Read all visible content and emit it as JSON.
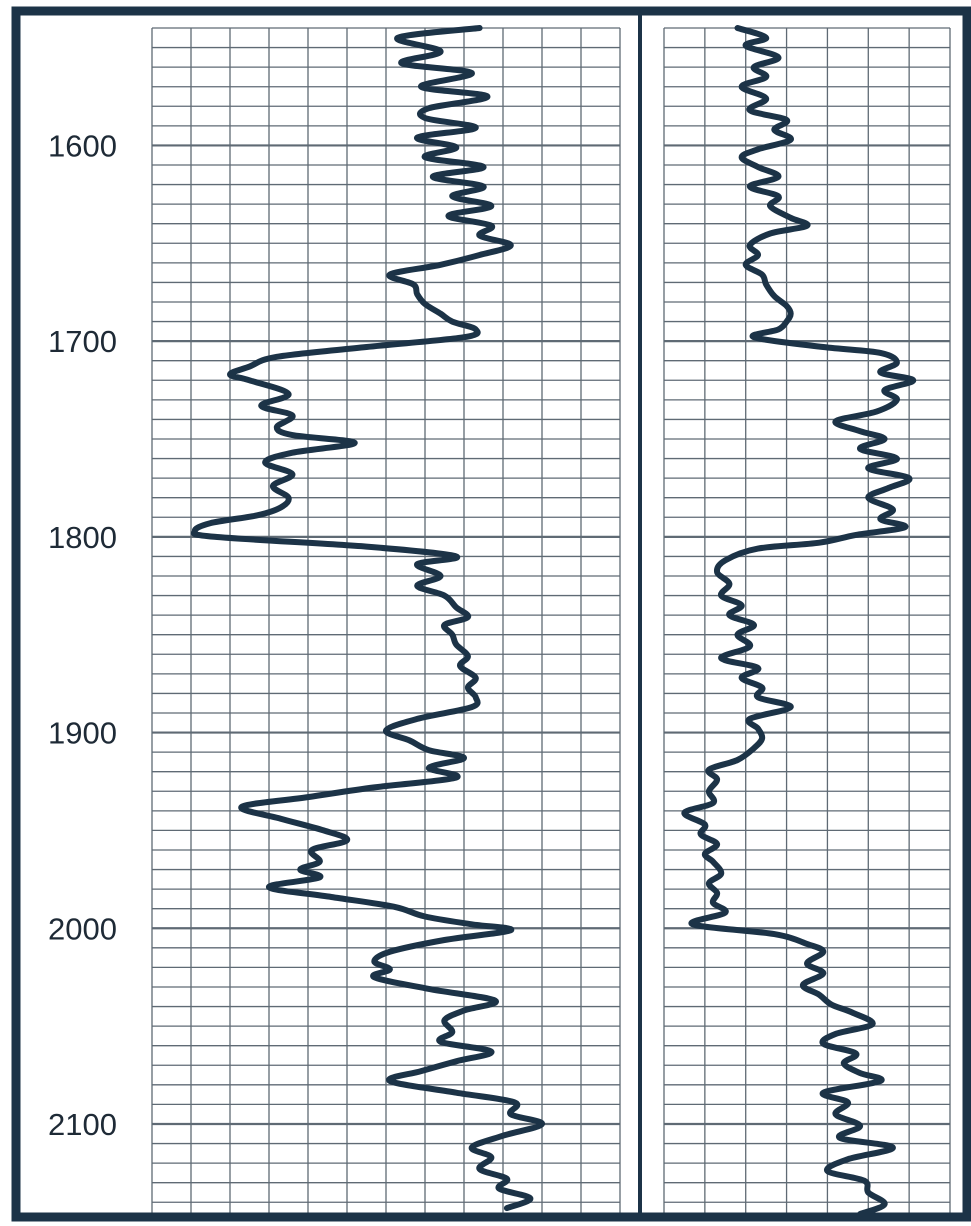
{
  "chart_data": {
    "type": "line",
    "title": "",
    "xlabel": "",
    "ylabel": "",
    "y_axis": {
      "range": [
        1540,
        2146
      ],
      "inverted": true,
      "ticks": [
        1600,
        1700,
        1800,
        1900,
        2000,
        2100
      ],
      "tick_labels": [
        "1600",
        "1700",
        "1800",
        "1900",
        "2000",
        "2100"
      ],
      "grid": true
    },
    "colors": {
      "curve": "#1c3347",
      "grid": "#5f6a74",
      "frame": "#1c3347",
      "text": "#1e2a36"
    },
    "tracks": [
      {
        "name": "",
        "x_range": [
          0,
          12
        ],
        "grid_columns": 12,
        "points": [
          [
            1540,
            8.4
          ],
          [
            1545,
            6.3
          ],
          [
            1552,
            7.4
          ],
          [
            1558,
            6.4
          ],
          [
            1563,
            8.2
          ],
          [
            1570,
            6.9
          ],
          [
            1575,
            8.6
          ],
          [
            1581,
            7.1
          ],
          [
            1586,
            7.0
          ],
          [
            1591,
            8.3
          ],
          [
            1596,
            6.8
          ],
          [
            1601,
            7.8
          ],
          [
            1606,
            7.0
          ],
          [
            1611,
            8.5
          ],
          [
            1616,
            7.2
          ],
          [
            1621,
            8.5
          ],
          [
            1626,
            7.7
          ],
          [
            1631,
            8.7
          ],
          [
            1636,
            7.6
          ],
          [
            1641,
            8.7
          ],
          [
            1646,
            8.4
          ],
          [
            1651,
            9.2
          ],
          [
            1656,
            8.4
          ],
          [
            1661,
            7.4
          ],
          [
            1666,
            6.1
          ],
          [
            1671,
            6.7
          ],
          [
            1676,
            6.8
          ],
          [
            1681,
            7.0
          ],
          [
            1686,
            7.4
          ],
          [
            1690,
            7.7
          ],
          [
            1694,
            8.3
          ],
          [
            1698,
            8.0
          ],
          [
            1703,
            5.5
          ],
          [
            1708,
            3.2
          ],
          [
            1713,
            2.5
          ],
          [
            1717,
            2.0
          ],
          [
            1720,
            2.5
          ],
          [
            1727,
            3.5
          ],
          [
            1733,
            2.8
          ],
          [
            1738,
            3.6
          ],
          [
            1744,
            3.2
          ],
          [
            1748,
            3.6
          ],
          [
            1752,
            5.2
          ],
          [
            1757,
            3.6
          ],
          [
            1762,
            2.9
          ],
          [
            1768,
            3.6
          ],
          [
            1774,
            3.1
          ],
          [
            1780,
            3.5
          ],
          [
            1785,
            3.3
          ],
          [
            1789,
            2.7
          ],
          [
            1793,
            1.5
          ],
          [
            1797,
            1.1
          ],
          [
            1800,
            1.6
          ],
          [
            1805,
            5.5
          ],
          [
            1810,
            7.8
          ],
          [
            1814,
            6.8
          ],
          [
            1820,
            7.4
          ],
          [
            1825,
            6.8
          ],
          [
            1830,
            7.5
          ],
          [
            1836,
            7.8
          ],
          [
            1841,
            8.1
          ],
          [
            1845,
            7.5
          ],
          [
            1850,
            7.7
          ],
          [
            1855,
            7.8
          ],
          [
            1861,
            8.1
          ],
          [
            1866,
            7.9
          ],
          [
            1872,
            8.3
          ],
          [
            1877,
            8.1
          ],
          [
            1882,
            8.3
          ],
          [
            1887,
            8.2
          ],
          [
            1893,
            6.8
          ],
          [
            1899,
            6.0
          ],
          [
            1904,
            6.6
          ],
          [
            1909,
            7.1
          ],
          [
            1913,
            8.0
          ],
          [
            1918,
            7.1
          ],
          [
            1923,
            7.8
          ],
          [
            1928,
            5.7
          ],
          [
            1933,
            4.0
          ],
          [
            1938,
            2.3
          ],
          [
            1944,
            3.3
          ],
          [
            1950,
            4.4
          ],
          [
            1955,
            5.0
          ],
          [
            1960,
            4.1
          ],
          [
            1966,
            4.3
          ],
          [
            1970,
            3.8
          ],
          [
            1974,
            4.3
          ],
          [
            1979,
            3.0
          ],
          [
            1984,
            4.6
          ],
          [
            1989,
            6.2
          ],
          [
            1994,
            7.0
          ],
          [
            1998,
            8.2
          ],
          [
            2001,
            9.2
          ],
          [
            2006,
            7.5
          ],
          [
            2012,
            6.1
          ],
          [
            2017,
            5.7
          ],
          [
            2021,
            6.1
          ],
          [
            2025,
            5.7
          ],
          [
            2031,
            7.1
          ],
          [
            2037,
            8.8
          ],
          [
            2042,
            8.0
          ],
          [
            2047,
            7.5
          ],
          [
            2053,
            7.7
          ],
          [
            2058,
            7.4
          ],
          [
            2063,
            8.7
          ],
          [
            2068,
            7.8
          ],
          [
            2073,
            6.9
          ],
          [
            2078,
            6.1
          ],
          [
            2084,
            7.8
          ],
          [
            2089,
            9.3
          ],
          [
            2095,
            9.2
          ],
          [
            2100,
            10.0
          ],
          [
            2106,
            9.0
          ],
          [
            2112,
            8.2
          ],
          [
            2117,
            8.7
          ],
          [
            2123,
            8.4
          ],
          [
            2128,
            9.1
          ],
          [
            2133,
            8.9
          ],
          [
            2138,
            9.7
          ],
          [
            2143,
            9.1
          ]
        ]
      },
      {
        "name": "",
        "x_range": [
          0,
          7
        ],
        "grid_columns": 7,
        "points": [
          [
            1540,
            1.8
          ],
          [
            1545,
            2.5
          ],
          [
            1549,
            2.0
          ],
          [
            1555,
            2.8
          ],
          [
            1560,
            2.2
          ],
          [
            1565,
            2.5
          ],
          [
            1570,
            1.9
          ],
          [
            1576,
            2.5
          ],
          [
            1582,
            2.1
          ],
          [
            1587,
            3.0
          ],
          [
            1592,
            2.7
          ],
          [
            1597,
            3.1
          ],
          [
            1602,
            2.3
          ],
          [
            1606,
            1.9
          ],
          [
            1611,
            2.3
          ],
          [
            1616,
            2.8
          ],
          [
            1621,
            2.1
          ],
          [
            1626,
            2.8
          ],
          [
            1631,
            2.6
          ],
          [
            1637,
            3.1
          ],
          [
            1641,
            3.5
          ],
          [
            1645,
            2.6
          ],
          [
            1651,
            2.1
          ],
          [
            1656,
            2.3
          ],
          [
            1661,
            2.0
          ],
          [
            1666,
            2.4
          ],
          [
            1671,
            2.5
          ],
          [
            1677,
            2.7
          ],
          [
            1682,
            3.0
          ],
          [
            1686,
            3.1
          ],
          [
            1690,
            3.0
          ],
          [
            1694,
            2.8
          ],
          [
            1698,
            2.2
          ],
          [
            1703,
            3.9
          ],
          [
            1706,
            5.3
          ],
          [
            1711,
            5.7
          ],
          [
            1716,
            5.3
          ],
          [
            1720,
            6.1
          ],
          [
            1725,
            5.4
          ],
          [
            1730,
            5.7
          ],
          [
            1736,
            5.2
          ],
          [
            1741,
            4.2
          ],
          [
            1746,
            4.8
          ],
          [
            1750,
            5.4
          ],
          [
            1755,
            4.8
          ],
          [
            1760,
            5.7
          ],
          [
            1765,
            5.0
          ],
          [
            1770,
            6.0
          ],
          [
            1775,
            5.5
          ],
          [
            1780,
            5.0
          ],
          [
            1786,
            5.6
          ],
          [
            1791,
            5.3
          ],
          [
            1795,
            5.9
          ],
          [
            1799,
            4.7
          ],
          [
            1803,
            3.8
          ],
          [
            1806,
            2.3
          ],
          [
            1812,
            1.5
          ],
          [
            1818,
            1.3
          ],
          [
            1824,
            1.6
          ],
          [
            1830,
            1.4
          ],
          [
            1835,
            1.9
          ],
          [
            1840,
            1.6
          ],
          [
            1845,
            2.2
          ],
          [
            1850,
            1.8
          ],
          [
            1856,
            2.1
          ],
          [
            1862,
            1.4
          ],
          [
            1867,
            2.3
          ],
          [
            1872,
            1.9
          ],
          [
            1877,
            2.4
          ],
          [
            1882,
            2.3
          ],
          [
            1887,
            3.1
          ],
          [
            1893,
            2.1
          ],
          [
            1898,
            2.3
          ],
          [
            1903,
            2.4
          ],
          [
            1908,
            2.2
          ],
          [
            1914,
            1.8
          ],
          [
            1919,
            1.1
          ],
          [
            1924,
            1.3
          ],
          [
            1930,
            1.1
          ],
          [
            1936,
            1.2
          ],
          [
            1941,
            0.5
          ],
          [
            1947,
            1.0
          ],
          [
            1952,
            0.9
          ],
          [
            1957,
            1.3
          ],
          [
            1962,
            1.0
          ],
          [
            1966,
            1.2
          ],
          [
            1972,
            1.4
          ],
          [
            1977,
            1.1
          ],
          [
            1982,
            1.3
          ],
          [
            1987,
            1.2
          ],
          [
            1992,
            1.5
          ],
          [
            1998,
            0.7
          ],
          [
            2003,
            2.7
          ],
          [
            2008,
            3.5
          ],
          [
            2012,
            3.9
          ],
          [
            2018,
            3.5
          ],
          [
            2023,
            3.9
          ],
          [
            2029,
            3.4
          ],
          [
            2034,
            3.8
          ],
          [
            2039,
            4.1
          ],
          [
            2043,
            4.6
          ],
          [
            2049,
            5.1
          ],
          [
            2054,
            4.2
          ],
          [
            2059,
            3.9
          ],
          [
            2064,
            4.7
          ],
          [
            2069,
            4.4
          ],
          [
            2074,
            4.8
          ],
          [
            2078,
            5.3
          ],
          [
            2084,
            3.9
          ],
          [
            2089,
            4.5
          ],
          [
            2095,
            4.2
          ],
          [
            2101,
            4.8
          ],
          [
            2107,
            4.3
          ],
          [
            2112,
            5.6
          ],
          [
            2118,
            4.5
          ],
          [
            2124,
            4.0
          ],
          [
            2129,
            4.9
          ],
          [
            2135,
            5.0
          ],
          [
            2141,
            5.4
          ],
          [
            2146,
            4.8
          ]
        ]
      }
    ]
  }
}
